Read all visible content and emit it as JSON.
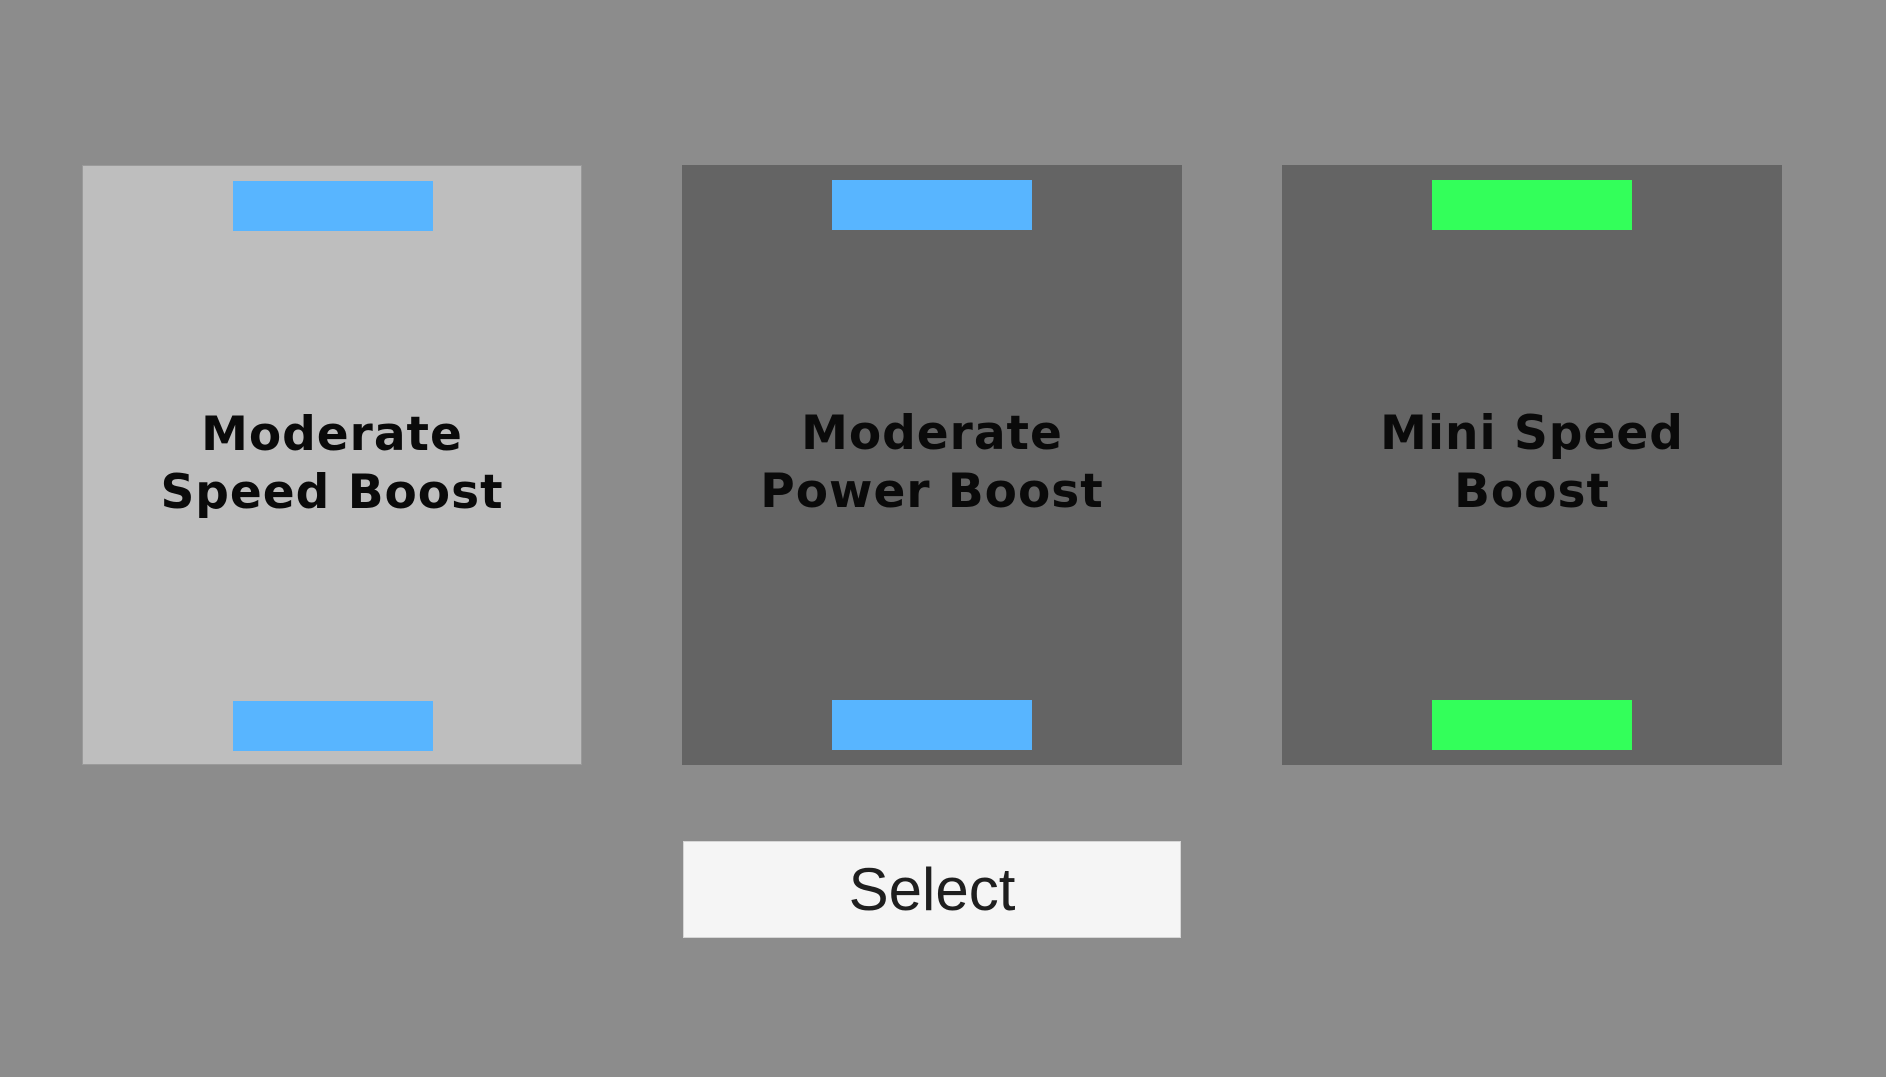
{
  "cards": [
    {
      "title_line1": "Moderate",
      "title_line2": "Speed Boost",
      "stripe_color": "#58b5ff",
      "selected": true
    },
    {
      "title_line1": "Moderate",
      "title_line2": "Power Boost",
      "stripe_color": "#58b5ff",
      "selected": false
    },
    {
      "title_line1": "Mini Speed",
      "title_line2": "Boost",
      "stripe_color": "#33ff5a",
      "selected": false
    }
  ],
  "select_button": {
    "label": "Select"
  },
  "colors": {
    "background": "#8c8c8c",
    "card": "#646464",
    "card_selected": "#bebebe",
    "button": "#f5f5f5"
  }
}
